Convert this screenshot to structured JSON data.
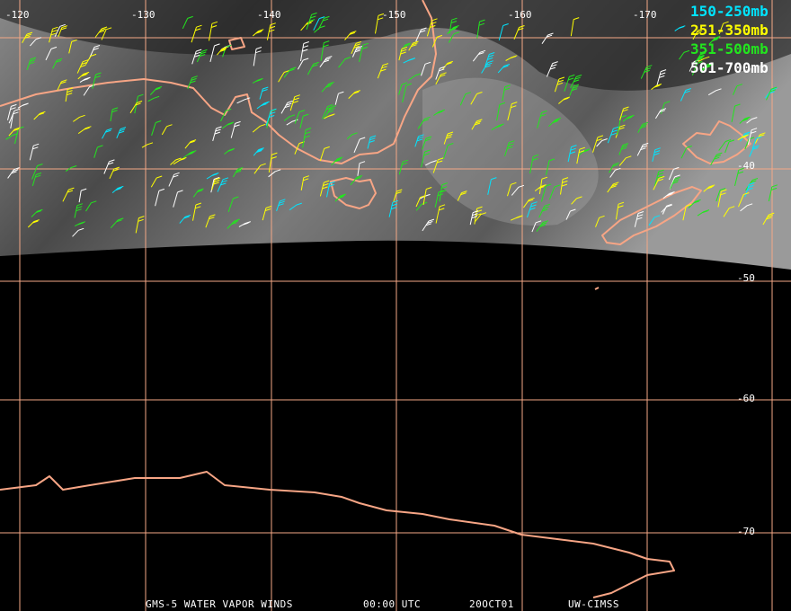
{
  "map": {
    "longitude_labels": [
      "-120",
      "-130",
      "-140",
      "-150",
      "-160",
      "-170"
    ],
    "latitude_labels": [
      "-40",
      "-50",
      "-60",
      "-70"
    ],
    "legend": [
      {
        "label": "150-250mb",
        "color": "#00e5ff"
      },
      {
        "label": "251-350mb",
        "color": "#ffff00"
      },
      {
        "label": "351-500mb",
        "color": "#22e61e"
      },
      {
        "label": "501-700mb",
        "color": "#ffffff"
      }
    ],
    "footer": [
      "GMS-5 WATER VAPOR WINDS",
      "00:00 UTC",
      "20OCT01",
      "UW-CIMSS"
    ]
  }
}
